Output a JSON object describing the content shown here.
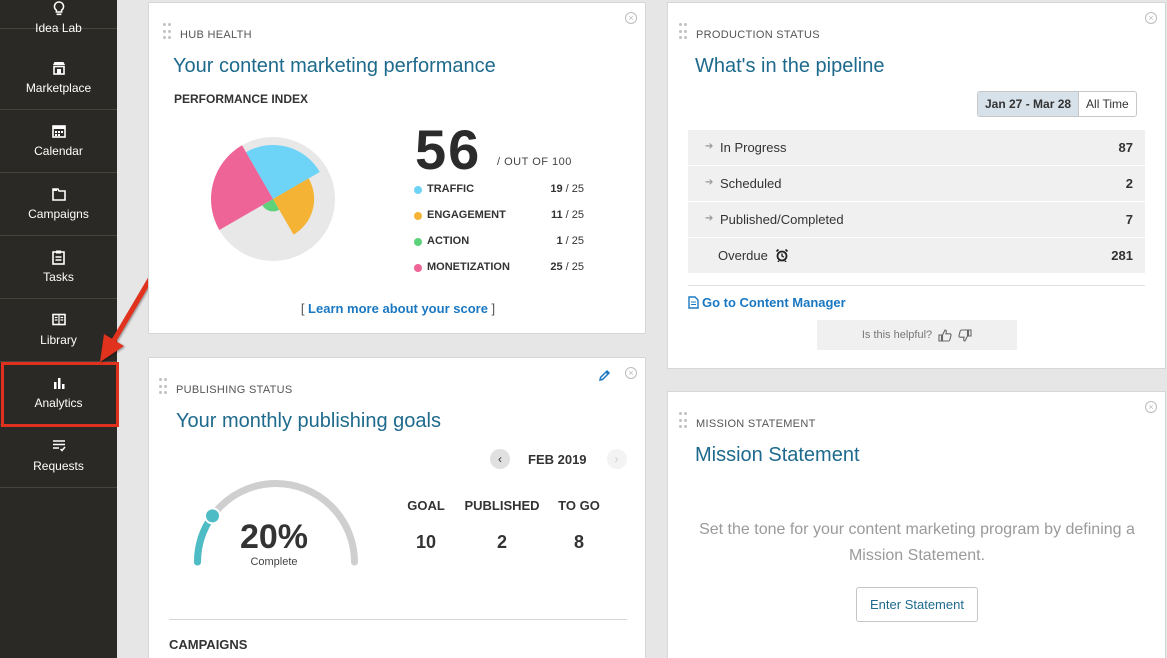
{
  "sidebar": {
    "items": [
      {
        "label": "Idea Lab",
        "icon": "lightbulb-icon"
      },
      {
        "label": "Marketplace",
        "icon": "store-icon"
      },
      {
        "label": "Calendar",
        "icon": "calendar-icon"
      },
      {
        "label": "Campaigns",
        "icon": "campaign-folder-icon"
      },
      {
        "label": "Tasks",
        "icon": "clipboard-icon"
      },
      {
        "label": "Library",
        "icon": "book-icon"
      },
      {
        "label": "Analytics",
        "icon": "bar-chart-icon"
      },
      {
        "label": "Requests",
        "icon": "request-list-icon"
      }
    ],
    "highlighted": "Analytics",
    "highlight_color": "#e0301e"
  },
  "hub_health": {
    "eyebrow": "HUB HEALTH",
    "title": "Your content marketing performance",
    "index_label": "PERFORMANCE INDEX",
    "score": "56",
    "score_suffix": "/ OUT OF 100",
    "metrics": [
      {
        "name": "TRAFFIC",
        "value": "19",
        "max": "/ 25",
        "color": "#6dd3f7"
      },
      {
        "name": "ENGAGEMENT",
        "value": "11",
        "max": "/ 25",
        "color": "#f5b335"
      },
      {
        "name": "ACTION",
        "value": "1",
        "max": "/ 25",
        "color": "#5ed27a"
      },
      {
        "name": "MONETIZATION",
        "value": "25",
        "max": "/ 25",
        "color": "#ee6497"
      }
    ],
    "learn_prefix": "[ ",
    "learn_link": "Learn more about your score",
    "learn_suffix": " ]"
  },
  "production": {
    "eyebrow": "PRODUCTION STATUS",
    "title": "What's in the pipeline",
    "date_range": "Jan 27 - Mar 28",
    "all_time": "All Time",
    "rows": [
      {
        "label": "In Progress",
        "value": "87"
      },
      {
        "label": "Scheduled",
        "value": "2"
      },
      {
        "label": "Published/Completed",
        "value": "7"
      },
      {
        "label": "Overdue",
        "value": "281"
      }
    ],
    "content_manager_link": "Go to Content Manager",
    "helpful_text": "Is this helpful?"
  },
  "publishing": {
    "eyebrow": "PUBLISHING STATUS",
    "title": "Your monthly publishing goals",
    "month": "FEB 2019",
    "percent": "20%",
    "percent_value": 0.2,
    "percent_sub": "Complete",
    "stats": [
      {
        "label": "GOAL",
        "value": "10"
      },
      {
        "label": "PUBLISHED",
        "value": "2"
      },
      {
        "label": "TO GO",
        "value": "8"
      }
    ],
    "campaigns_label": "CAMPAIGNS",
    "accent_color": "#4dbcc4"
  },
  "mission": {
    "eyebrow": "MISSION STATEMENT",
    "title": "Mission Statement",
    "body": "Set the tone for your content marketing program by defining a Mission Statement.",
    "button": "Enter Statement"
  }
}
